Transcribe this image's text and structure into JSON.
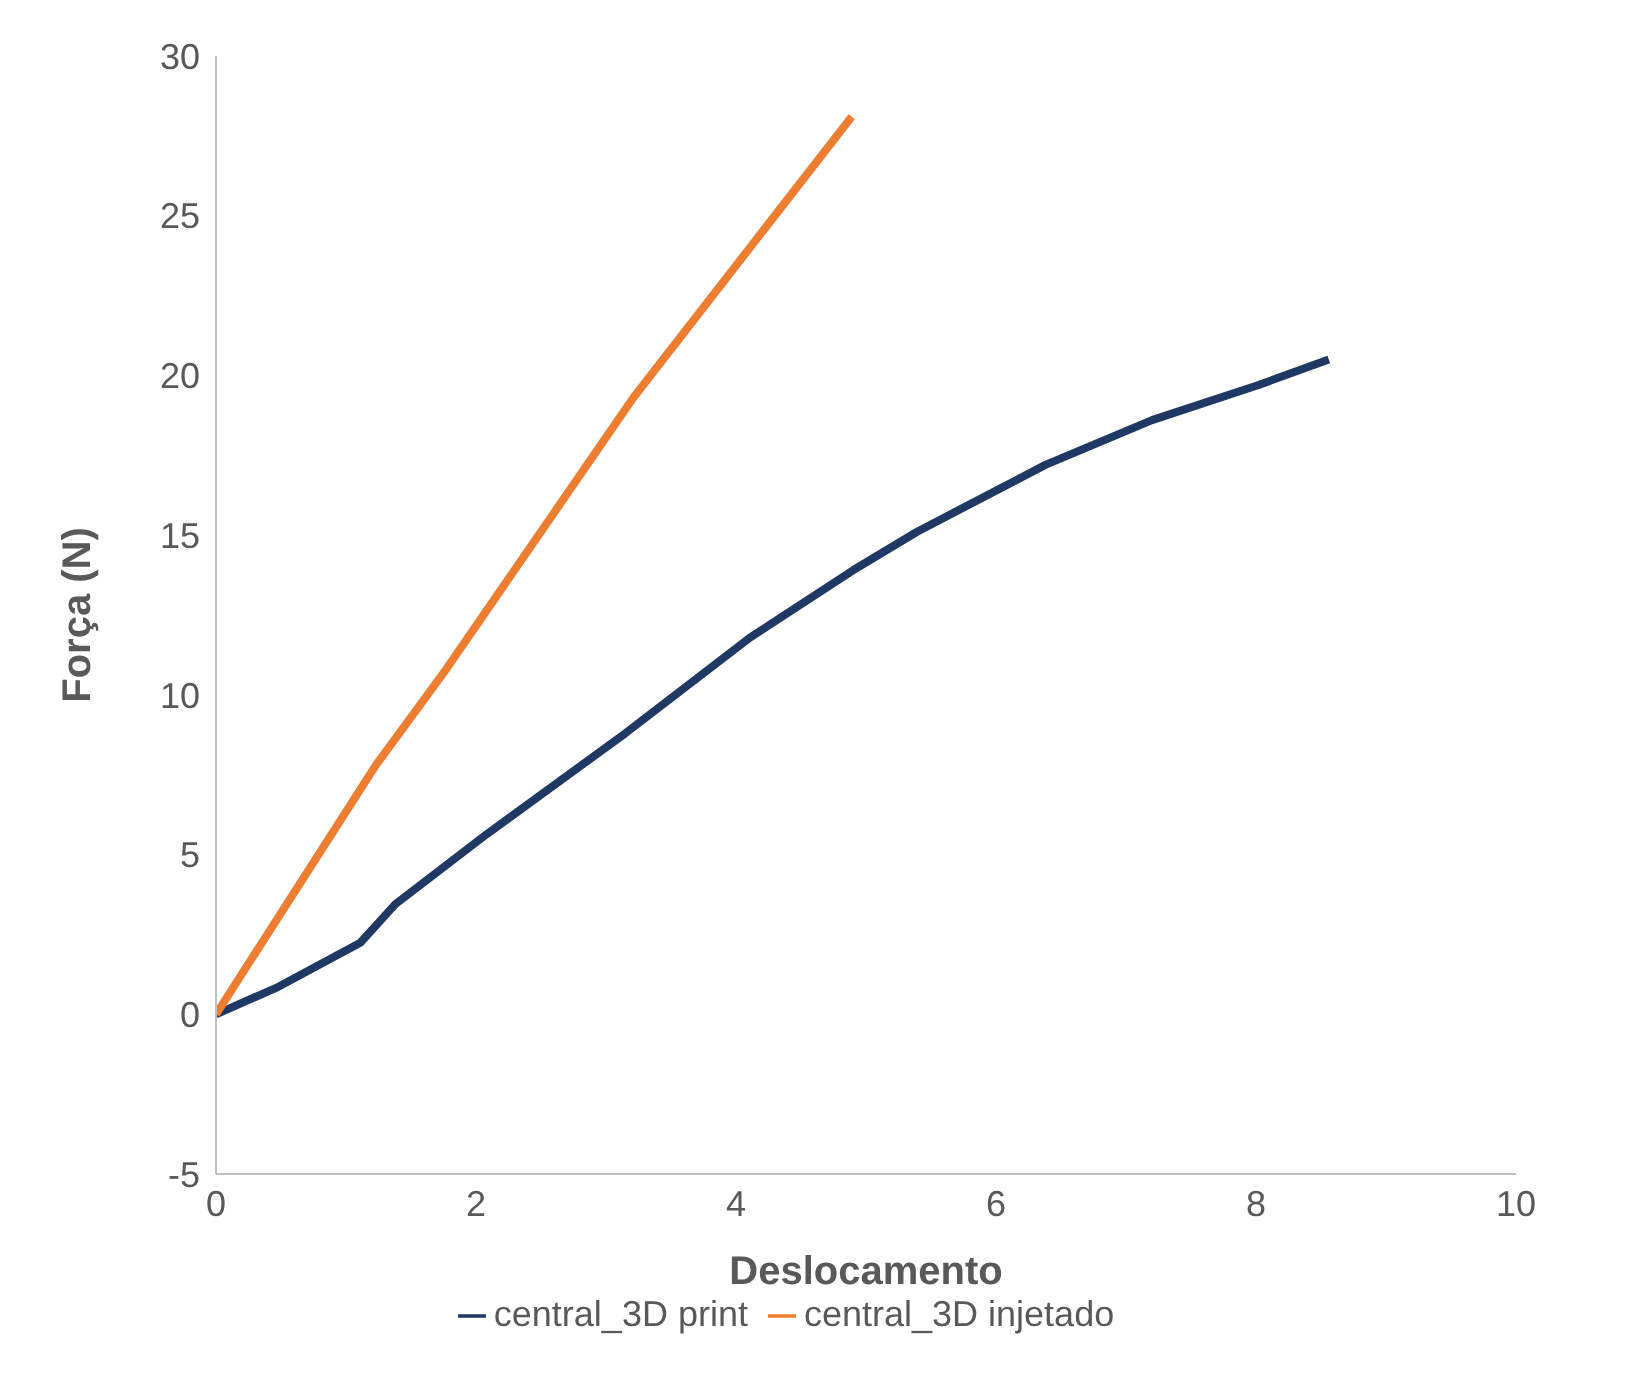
{
  "chart_data": {
    "type": "line",
    "xlabel": "Deslocamento",
    "ylabel": "Força (N)",
    "xlim": [
      0,
      10
    ],
    "xticks": [
      0,
      2,
      4,
      6,
      8,
      10
    ],
    "ylim": [
      -5,
      30
    ],
    "yticks": [
      -5,
      0,
      5,
      10,
      15,
      20,
      25,
      30
    ],
    "grid": false,
    "legend": "bottom",
    "marker": "none",
    "series": [
      {
        "name": "central_3D print",
        "color": "#203864",
        "x": [
          0,
          0.48,
          1.11,
          1.38,
          2.08,
          3.15,
          4.11,
          4.9,
          5.39,
          6.38,
          7.2,
          8.02,
          8.56
        ],
        "values": [
          0,
          0.86,
          2.24,
          3.45,
          5.63,
          8.8,
          11.8,
          13.9,
          15.1,
          17.2,
          18.6,
          19.7,
          20.5
        ]
      },
      {
        "name": "central_3D injetado",
        "color": "#ed7d31",
        "x": [
          0,
          1.23,
          1.77,
          3.21,
          4.89
        ],
        "values": [
          0,
          7.8,
          10.8,
          19.3,
          28.1
        ]
      }
    ]
  }
}
